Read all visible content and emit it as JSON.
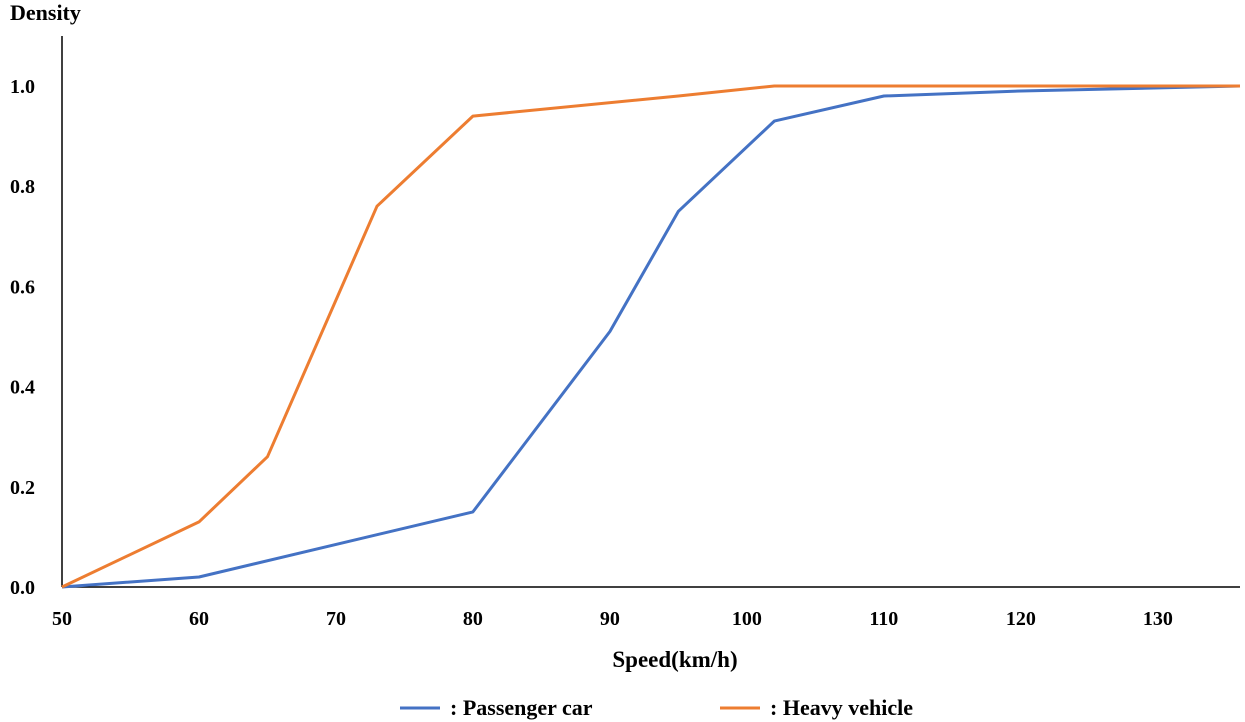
{
  "chart_data": {
    "type": "line",
    "ylabel": "Density",
    "xlabel": "Speed(km/h)",
    "xlim": [
      50,
      136
    ],
    "ylim": [
      0,
      1.0
    ],
    "x_ticks": [
      "50",
      "60",
      "70",
      "80",
      "90",
      "100",
      "110",
      "120",
      "130"
    ],
    "y_ticks": [
      "0.0",
      "0.2",
      "0.4",
      "0.6",
      "0.8",
      "1.0"
    ],
    "grid": false,
    "legend_position": "bottom",
    "series": [
      {
        "name": ": Passenger car",
        "color": "#4472C4",
        "points": [
          [
            50,
            0.0
          ],
          [
            60,
            0.02
          ],
          [
            80,
            0.15
          ],
          [
            90,
            0.51
          ],
          [
            95,
            0.75
          ],
          [
            102,
            0.93
          ],
          [
            110,
            0.98
          ],
          [
            120,
            0.99
          ],
          [
            136,
            1.0
          ]
        ]
      },
      {
        "name": ": Heavy vehicle",
        "color": "#ED7D31",
        "points": [
          [
            50,
            0.0
          ],
          [
            60,
            0.13
          ],
          [
            65,
            0.26
          ],
          [
            73,
            0.76
          ],
          [
            80,
            0.94
          ],
          [
            95,
            0.98
          ],
          [
            102,
            1.0
          ],
          [
            136,
            1.0
          ]
        ]
      }
    ]
  }
}
